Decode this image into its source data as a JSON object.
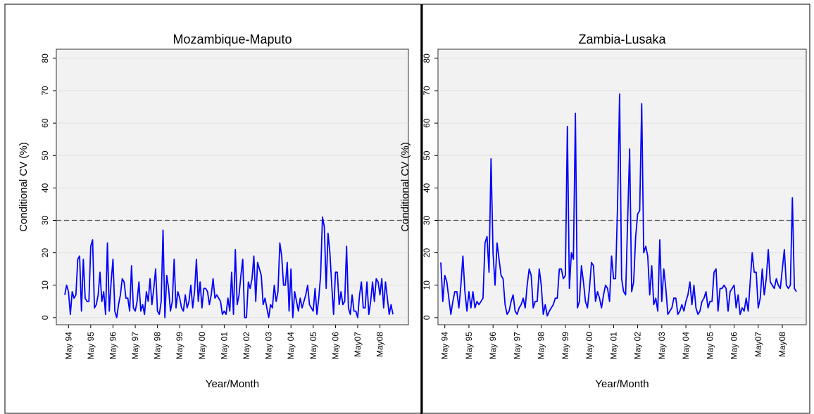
{
  "chart_data": [
    {
      "type": "line",
      "title": "Mozambique-Maputo",
      "ylabel": "Conditional CV (%)",
      "xlabel": "Year/Month",
      "categories": [
        null,
        null,
        "May 94",
        null,
        null,
        null,
        null,
        null,
        null,
        null,
        null,
        null,
        null,
        null,
        "May 95",
        null,
        null,
        null,
        null,
        null,
        null,
        null,
        null,
        null,
        null,
        null,
        "May 96",
        null,
        null,
        null,
        null,
        null,
        null,
        null,
        null,
        null,
        null,
        null,
        "May 97",
        null,
        null,
        null,
        null,
        null,
        null,
        null,
        null,
        null,
        null,
        null,
        "May 98",
        null,
        null,
        null,
        null,
        null,
        null,
        null,
        null,
        null,
        null,
        null,
        "May 99",
        null,
        null,
        null,
        null,
        null,
        null,
        null,
        null,
        null,
        null,
        null,
        "May 00",
        null,
        null,
        null,
        null,
        null,
        null,
        null,
        null,
        null,
        null,
        null,
        "May 01",
        null,
        null,
        null,
        null,
        null,
        null,
        null,
        null,
        null,
        null,
        null,
        "May 02",
        null,
        null,
        null,
        null,
        null,
        null,
        null,
        null,
        null,
        null,
        null,
        "May 03",
        null,
        null,
        null,
        null,
        null,
        null,
        null,
        null,
        null,
        null,
        null,
        "May 04",
        null,
        null,
        null,
        null,
        null,
        null,
        null,
        null,
        null,
        null,
        null,
        "May 05",
        null,
        null,
        null,
        null,
        null,
        null,
        null,
        null,
        null,
        null,
        null,
        "May 06",
        null,
        null,
        null,
        null,
        null,
        null,
        null,
        null,
        null,
        null,
        null,
        "May07",
        null,
        null,
        null,
        null,
        null,
        null,
        null,
        null,
        null,
        null,
        null,
        "May08",
        null,
        null,
        null,
        null,
        null,
        null,
        null
      ],
      "series": [
        {
          "color": "#0000ff",
          "values": [
            7,
            10,
            8,
            1,
            8,
            6,
            7,
            18,
            19,
            2,
            18,
            6,
            5,
            5,
            22,
            24,
            3,
            4,
            7,
            14,
            5,
            8,
            1,
            23,
            2,
            11,
            18,
            2,
            0,
            4,
            7,
            12,
            11,
            6,
            6,
            2,
            16,
            3,
            2,
            5,
            11,
            2,
            4,
            1,
            8,
            5,
            12,
            4,
            9,
            15,
            2,
            1,
            5,
            27,
            0,
            13,
            9,
            2,
            5,
            18,
            3,
            8,
            6,
            3,
            2,
            7,
            3,
            5,
            10,
            3,
            8,
            18,
            5,
            11,
            3,
            9,
            9,
            8,
            4,
            7,
            12,
            6,
            7,
            6,
            5,
            1,
            2,
            1,
            6,
            2,
            14,
            1,
            21,
            4,
            7,
            13,
            18,
            0,
            0,
            11,
            9,
            12,
            19,
            5,
            17,
            15,
            13,
            4,
            6,
            3,
            0,
            4,
            3,
            10,
            5,
            8,
            23,
            19,
            10,
            10,
            17,
            2,
            15,
            0,
            8,
            5,
            2,
            6,
            3,
            5,
            7,
            10,
            4,
            3,
            2,
            9,
            1,
            6,
            13,
            31,
            28,
            9,
            26,
            20,
            10,
            1,
            14,
            14,
            4,
            8,
            4,
            5,
            22,
            3,
            1,
            7,
            2,
            2,
            0,
            7,
            11,
            3,
            3,
            11,
            1,
            5,
            11,
            5,
            12,
            11,
            7,
            12,
            3,
            11,
            6,
            1,
            4,
            1
          ]
        }
      ],
      "ylim": [
        -2.2,
        82.8
      ],
      "yticks": [
        0,
        10,
        20,
        30,
        40,
        50,
        60,
        70,
        80
      ],
      "grid": true,
      "hline": 30
    },
    {
      "type": "line",
      "title": "Zambia-Lusaka",
      "ylabel": "Conditional CV (%)",
      "xlabel": "Year/Month",
      "categories": [
        null,
        null,
        "May 94",
        null,
        null,
        null,
        null,
        null,
        null,
        null,
        null,
        null,
        null,
        null,
        "May 95",
        null,
        null,
        null,
        null,
        null,
        null,
        null,
        null,
        null,
        null,
        null,
        "May 96",
        null,
        null,
        null,
        null,
        null,
        null,
        null,
        null,
        null,
        null,
        null,
        "May 97",
        null,
        null,
        null,
        null,
        null,
        null,
        null,
        null,
        null,
        null,
        null,
        "May 98",
        null,
        null,
        null,
        null,
        null,
        null,
        null,
        null,
        null,
        null,
        null,
        "May 99",
        null,
        null,
        null,
        null,
        null,
        null,
        null,
        null,
        null,
        null,
        null,
        "May 00",
        null,
        null,
        null,
        null,
        null,
        null,
        null,
        null,
        null,
        null,
        null,
        "May 01",
        null,
        null,
        null,
        null,
        null,
        null,
        null,
        null,
        null,
        null,
        null,
        "May 02",
        null,
        null,
        null,
        null,
        null,
        null,
        null,
        null,
        null,
        null,
        null,
        "May 03",
        null,
        null,
        null,
        null,
        null,
        null,
        null,
        null,
        null,
        null,
        null,
        "May 04",
        null,
        null,
        null,
        null,
        null,
        null,
        null,
        null,
        null,
        null,
        null,
        "May 05",
        null,
        null,
        null,
        null,
        null,
        null,
        null,
        null,
        null,
        null,
        null,
        "May 06",
        null,
        null,
        null,
        null,
        null,
        null,
        null,
        null,
        null,
        null,
        null,
        "May07",
        null,
        null,
        null,
        null,
        null,
        null,
        null,
        null,
        null,
        null,
        null,
        "May08",
        null,
        null,
        null,
        null,
        null,
        null,
        null
      ],
      "series": [
        {
          "color": "#0000ff",
          "values": [
            17,
            5,
            13,
            11,
            6,
            1,
            5,
            8,
            8,
            3,
            10,
            19,
            8,
            2,
            8,
            3,
            8,
            3,
            5,
            4,
            5,
            6,
            23,
            25,
            14,
            49,
            20,
            10,
            23,
            18,
            13,
            12,
            4,
            1,
            2,
            5,
            7,
            2,
            1,
            3,
            4,
            6,
            3,
            10,
            15,
            13,
            3,
            5,
            5,
            15,
            10,
            1,
            4,
            0.5,
            2,
            3,
            4,
            6,
            6,
            15,
            15,
            12,
            13,
            59,
            9,
            20,
            18,
            63,
            3,
            5,
            16,
            11,
            5,
            3,
            9,
            17,
            16,
            5,
            8,
            6,
            3,
            7,
            10,
            9,
            5,
            19,
            12,
            12,
            35,
            69,
            12,
            8,
            7,
            30,
            52,
            8,
            11,
            25,
            32,
            33,
            66,
            20,
            22,
            19,
            7,
            16,
            4,
            6,
            2,
            24,
            5,
            15,
            9,
            1,
            2,
            3,
            6,
            6,
            1,
            2,
            4,
            2,
            5,
            7,
            11,
            4,
            10,
            3,
            1,
            2,
            5,
            6,
            8,
            3,
            5,
            5,
            14,
            15,
            2,
            9,
            9,
            10,
            9,
            2,
            8,
            9,
            10,
            3,
            7,
            1,
            3,
            2,
            6,
            2,
            11,
            20,
            14,
            14,
            3,
            6,
            15,
            7,
            12,
            21,
            11,
            10,
            9,
            12,
            10,
            9,
            15,
            21,
            10,
            9,
            10,
            37,
            9,
            8
          ]
        }
      ],
      "ylim": [
        -2.2,
        82.8
      ],
      "yticks": [
        0,
        10,
        20,
        30,
        40,
        50,
        60,
        70,
        80
      ],
      "grid": true,
      "hline": 30
    }
  ]
}
